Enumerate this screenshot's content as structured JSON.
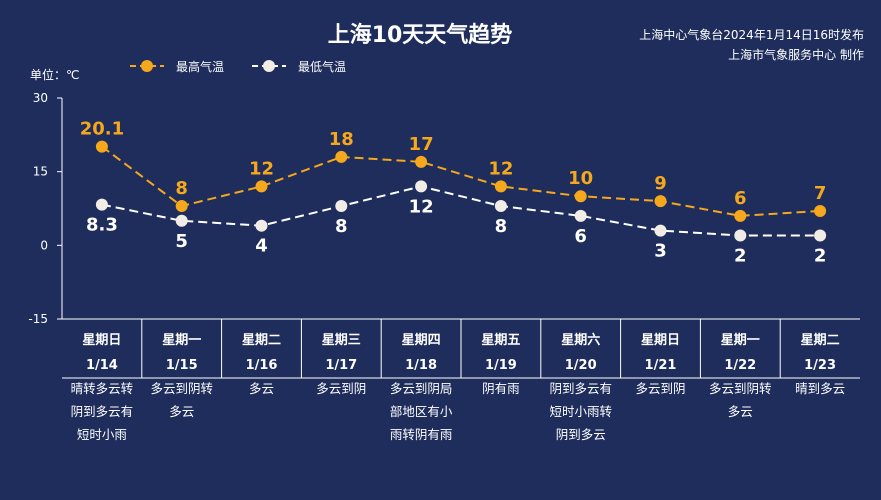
{
  "colors": {
    "background": "#1f2d5c",
    "high": "#f5a81c",
    "low": "#ffffff"
  },
  "chart_data": {
    "type": "line",
    "title": "上海10天天气趋势",
    "source_lines": [
      "上海中心气象台2024年1月14日16时发布",
      "上海市气象服务中心 制作"
    ],
    "unit_label": "单位：℃",
    "ylim": [
      -15,
      30
    ],
    "yticks": [
      "30",
      "15",
      "0",
      "-15"
    ],
    "categories": [
      {
        "weekday": "星期日",
        "date": "1/14",
        "weather": [
          "晴转多云转",
          "阴到多云有",
          "短时小雨"
        ]
      },
      {
        "weekday": "星期一",
        "date": "1/15",
        "weather": [
          "多云到阴转",
          "多云"
        ]
      },
      {
        "weekday": "星期二",
        "date": "1/16",
        "weather": [
          "多云"
        ]
      },
      {
        "weekday": "星期三",
        "date": "1/17",
        "weather": [
          "多云到阴"
        ]
      },
      {
        "weekday": "星期四",
        "date": "1/18",
        "weather": [
          "多云到阴局",
          "部地区有小",
          "雨转阴有雨"
        ]
      },
      {
        "weekday": "星期五",
        "date": "1/19",
        "weather": [
          "阴有雨"
        ]
      },
      {
        "weekday": "星期六",
        "date": "1/20",
        "weather": [
          "阴到多云有",
          "短时小雨转",
          "阴到多云"
        ]
      },
      {
        "weekday": "星期日",
        "date": "1/21",
        "weather": [
          "多云到阴"
        ]
      },
      {
        "weekday": "星期一",
        "date": "1/22",
        "weather": [
          "多云到阴转",
          "多云"
        ]
      },
      {
        "weekday": "星期二",
        "date": "1/23",
        "weather": [
          "晴到多云"
        ]
      }
    ],
    "series": [
      {
        "name": "最高气温",
        "values": [
          20.1,
          8,
          12,
          18,
          17,
          12,
          10,
          9,
          6,
          7
        ],
        "labels": [
          "20.1",
          "8",
          "12",
          "18",
          "17",
          "12",
          "10",
          "9",
          "6",
          "7"
        ]
      },
      {
        "name": "最低气温",
        "values": [
          8.3,
          5,
          4,
          8,
          12,
          8,
          6,
          3,
          2,
          2
        ],
        "labels": [
          "8.3",
          "5",
          "4",
          "8",
          "12",
          "8",
          "6",
          "3",
          "2",
          "2"
        ]
      }
    ]
  }
}
